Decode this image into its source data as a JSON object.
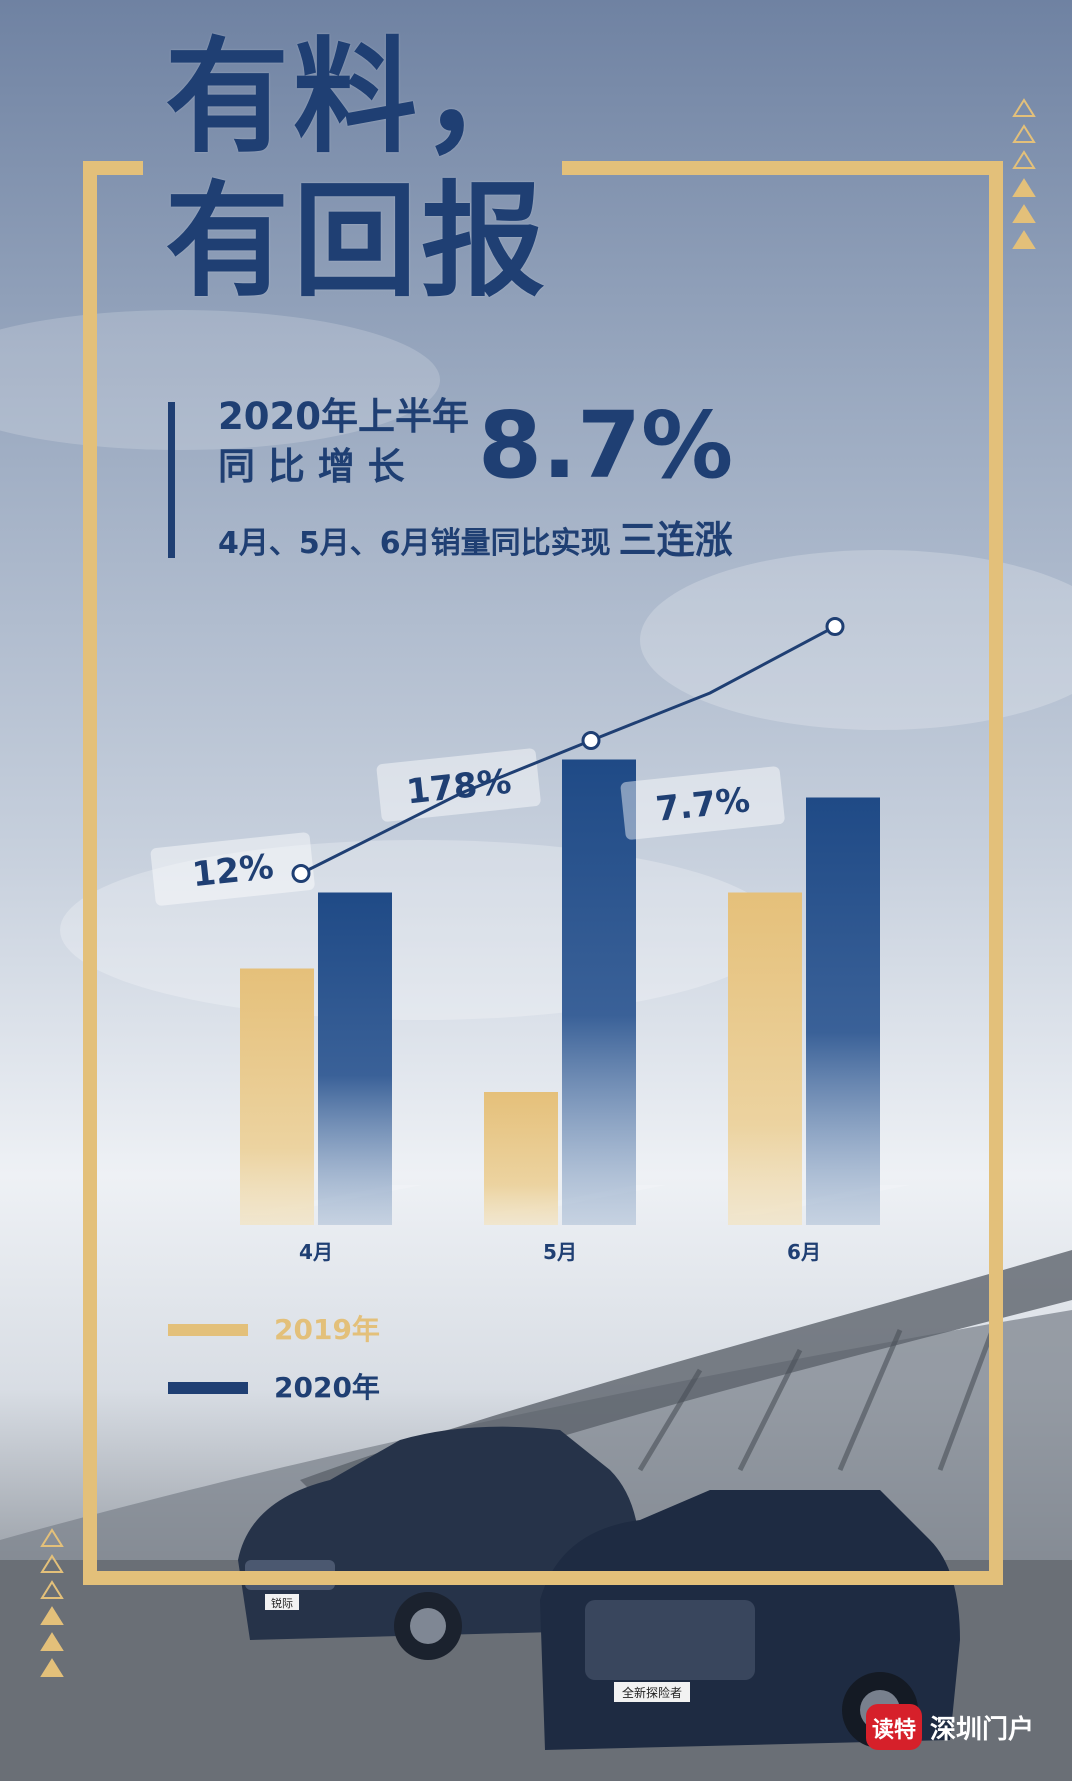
{
  "headline": {
    "line1": "有料，",
    "line2": "有回报"
  },
  "stat": {
    "line1": "2020年上半年",
    "line2": "同 比 增 长",
    "value": "8.7%",
    "sub_text": "4月、5月、6月销量同比实现",
    "sub_emphasis": "三连涨"
  },
  "legend": {
    "y2019": "2019年",
    "y2020": "2020年"
  },
  "car_plates": {
    "left": "锐际",
    "right": "全新探险者"
  },
  "brand": {
    "badge": "读特",
    "name": "深圳门户"
  },
  "colors": {
    "navy": "#1f3f73",
    "gold": "#e3c07a",
    "badge_red": "#d6202a"
  },
  "chart_data": {
    "type": "bar",
    "categories": [
      "4月",
      "5月",
      "6月"
    ],
    "series": [
      {
        "name": "2019年",
        "values": [
          27,
          14,
          35
        ]
      },
      {
        "name": "2020年",
        "values": [
          35,
          49,
          45
        ]
      }
    ],
    "growth_labels": [
      "12%",
      "178%",
      "7.7%"
    ],
    "trend_line": [
      37,
      51,
      63
    ],
    "ylim": [
      0,
      70
    ],
    "legend_position": "bottom-left"
  }
}
